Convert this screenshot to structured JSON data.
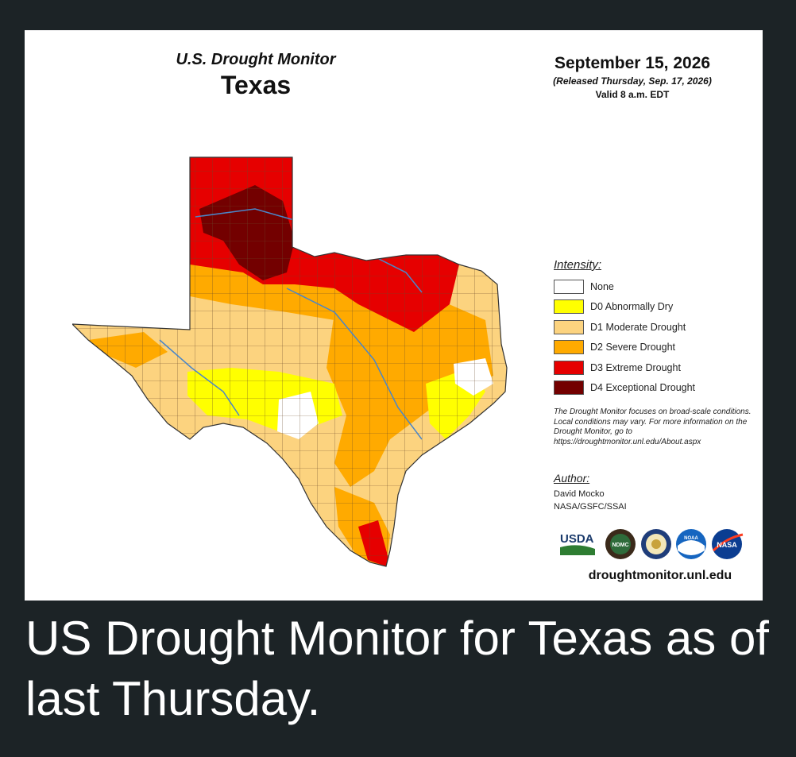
{
  "map": {
    "monitor_name": "U.S. Drought Monitor",
    "state": "Texas",
    "date": "September 15, 2026",
    "released": "(Released Thursday, Sep. 17, 2026)",
    "valid": "Valid 8 a.m. EDT"
  },
  "legend": {
    "title": "Intensity:",
    "items": [
      {
        "label": "None",
        "color": "#ffffff"
      },
      {
        "label": "D0 Abnormally Dry",
        "color": "#ffff00"
      },
      {
        "label": "D1 Moderate Drought",
        "color": "#fcd37f"
      },
      {
        "label": "D2 Severe Drought",
        "color": "#ffaa00"
      },
      {
        "label": "D3 Extreme Drought",
        "color": "#e60000"
      },
      {
        "label": "D4 Exceptional Drought",
        "color": "#730000"
      }
    ]
  },
  "disclaimer": "The Drought Monitor focuses on broad-scale conditions. Local conditions may vary. For more information on the Drought Monitor, go to https://droughtmonitor.unl.edu/About.aspx",
  "author": {
    "title": "Author:",
    "name": "David Mocko",
    "org": "NASA/GSFC/SSAI"
  },
  "logos": {
    "usda": "USDA",
    "ndmc": "NDMC",
    "noaa": "NOAA",
    "nasa": "NASA"
  },
  "site": "droughtmonitor.unl.edu",
  "caption": "US Drought Monitor for Texas as of last Thursday.",
  "colors": {
    "background": "#1c2326",
    "river": "#4a86c8",
    "county_lines": "#6b4a2a"
  }
}
